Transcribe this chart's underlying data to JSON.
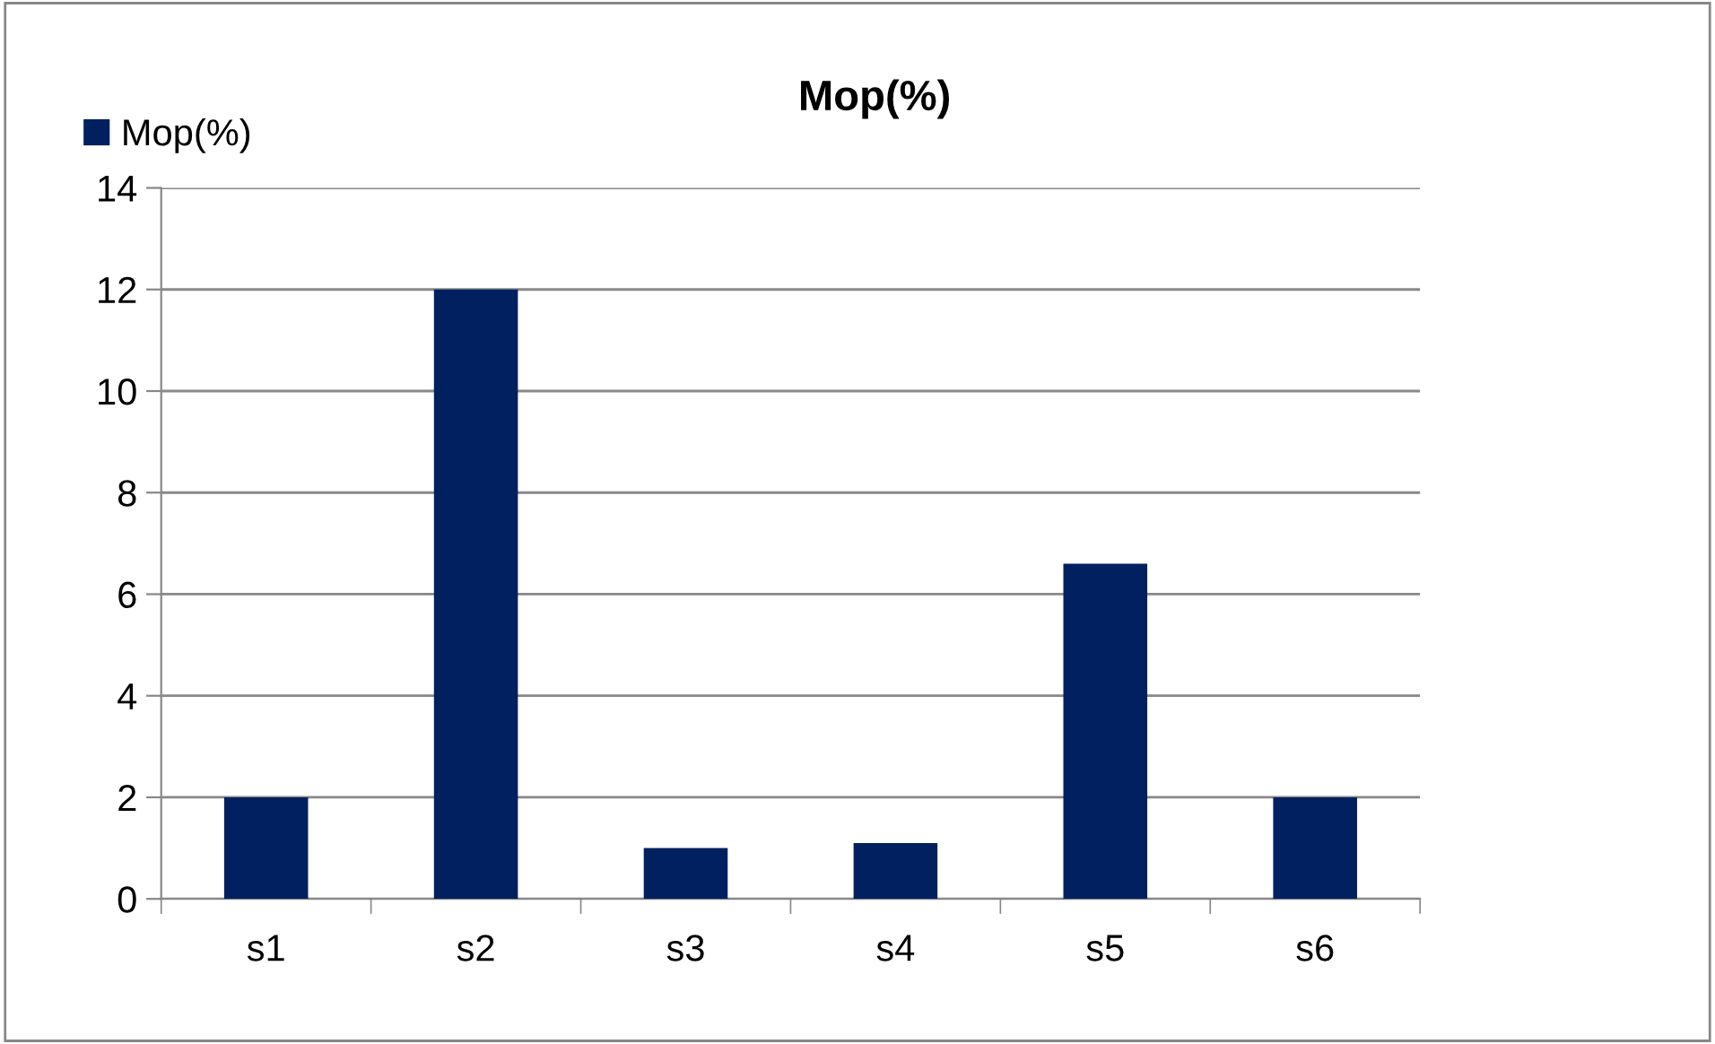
{
  "chart_data": {
    "type": "bar",
    "title": "Mop(%)",
    "categories": [
      "s1",
      "s2",
      "s3",
      "s4",
      "s5",
      "s6"
    ],
    "series": [
      {
        "name": "Mop(%)",
        "color": "#002060",
        "values": [
          2,
          12,
          1,
          1.1,
          6.6,
          2
        ]
      }
    ],
    "ylim": [
      0,
      14
    ],
    "yticks": [
      0,
      2,
      4,
      6,
      8,
      10,
      12,
      14
    ],
    "grid": "y",
    "legend": "top left"
  }
}
